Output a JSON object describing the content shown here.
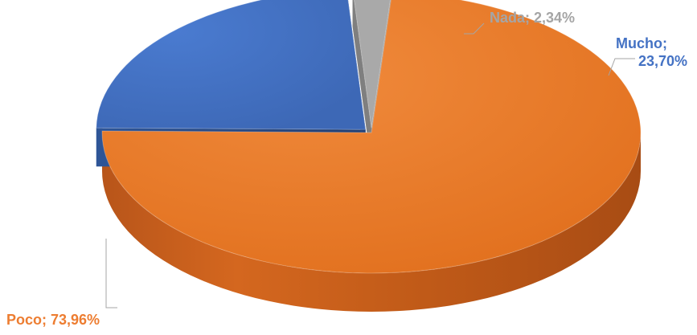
{
  "chart_data": {
    "type": "pie",
    "categories": [
      "Poco",
      "Mucho",
      "Nada"
    ],
    "values": [
      73.96,
      23.7,
      2.34
    ],
    "colors": [
      "#ED7D31",
      "#4472C4",
      "#A5A5A5"
    ],
    "labels": {
      "poco": "Poco; 73,96%",
      "mucho_line1": "Mucho;",
      "mucho_line2": "23,70%",
      "nada": "Nada; 2,34%"
    },
    "title": "",
    "legend": "none"
  }
}
